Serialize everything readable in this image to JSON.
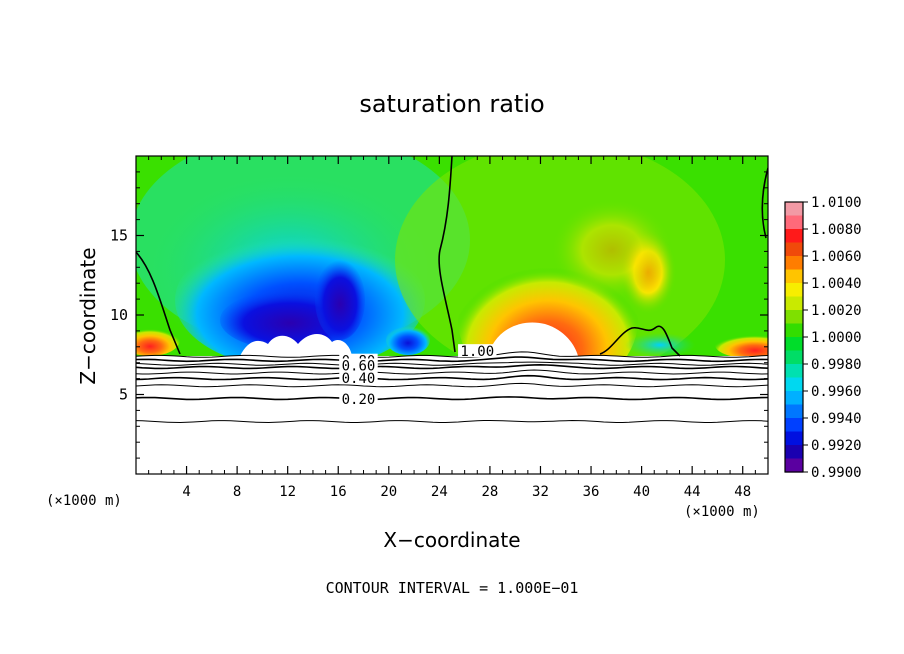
{
  "chart_data": {
    "type": "heatmap",
    "title": "saturation ratio",
    "xlabel": "X−coordinate",
    "ylabel": "Z−coordinate",
    "x_unit": "(×1000 m)",
    "x_unit_right": "(×1000 m)",
    "xlim": [
      0,
      50
    ],
    "ylim": [
      0,
      20
    ],
    "x_ticks": [
      4,
      8,
      12,
      16,
      20,
      24,
      28,
      32,
      36,
      40,
      44,
      48
    ],
    "y_ticks": [
      5,
      10,
      15
    ],
    "colorbar": {
      "min": 0.99,
      "max": 1.01,
      "labels": [
        "1.0100",
        "1.0080",
        "1.0060",
        "1.0040",
        "1.0020",
        "1.0000",
        "0.9980",
        "0.9960",
        "0.9940",
        "0.9920",
        "0.9900"
      ],
      "colors": [
        "#f29aa5",
        "#ff6a7a",
        "#ff1a1a",
        "#f04a0a",
        "#ff7d00",
        "#ffc400",
        "#f7ee00",
        "#c9ea00",
        "#7fe000",
        "#33dd00",
        "#00dd2a",
        "#00dd66",
        "#00e0b0",
        "#00d8f0",
        "#00b0ff",
        "#0077ff",
        "#0040ff",
        "#0010e0",
        "#1a00b0",
        "#5a00a0"
      ]
    },
    "field_features": [
      {
        "name": "dry region",
        "x_range": [
          4,
          20
        ],
        "z_range": [
          7.5,
          17
        ],
        "min_value": 0.9905
      },
      {
        "name": "moist plume",
        "x_range": [
          25,
          38
        ],
        "z_range": [
          7.5,
          16
        ],
        "max_value": 1.01
      },
      {
        "name": "secondary moist cell",
        "x_center": 40.5,
        "z_center": 13,
        "value": 1.004
      }
    ],
    "contour_labels": [
      {
        "text": "1.00",
        "x": 27,
        "z": 7.6
      },
      {
        "text": "0.80",
        "x": 17.6,
        "z": 7.0
      },
      {
        "text": "0.60",
        "x": 17.6,
        "z": 6.7
      },
      {
        "text": "0.40",
        "x": 17.6,
        "z": 5.9
      },
      {
        "text": "0.20",
        "x": 17.6,
        "z": 4.6
      }
    ],
    "contour_levels_below_cloud": [
      0.9,
      0.8,
      0.7,
      0.6,
      0.5,
      0.4,
      0.3,
      0.2,
      0.1
    ],
    "footer": "CONTOUR INTERVAL = 1.000E−01"
  }
}
